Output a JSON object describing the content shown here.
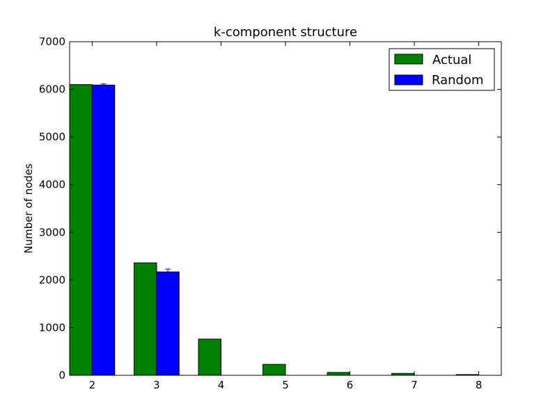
{
  "chart_data": {
    "type": "bar",
    "title": "k-component structure",
    "xlabel": "",
    "ylabel": "Number of nodes",
    "categories": [
      "2",
      "3",
      "4",
      "5",
      "6",
      "7",
      "8"
    ],
    "ylim": [
      0,
      7000
    ],
    "yticks": [
      0,
      1000,
      2000,
      3000,
      4000,
      5000,
      6000,
      7000
    ],
    "series": [
      {
        "name": "Actual",
        "color": "#008000",
        "values": [
          6100,
          2360,
          760,
          230,
          60,
          40,
          15
        ]
      },
      {
        "name": "Random",
        "color": "#0000ff",
        "values": [
          6090,
          2170,
          0,
          0,
          0,
          0,
          0
        ],
        "errors": [
          25,
          60,
          0,
          0,
          0,
          0,
          0
        ]
      }
    ],
    "legend_position": "top-right",
    "grid": false
  }
}
